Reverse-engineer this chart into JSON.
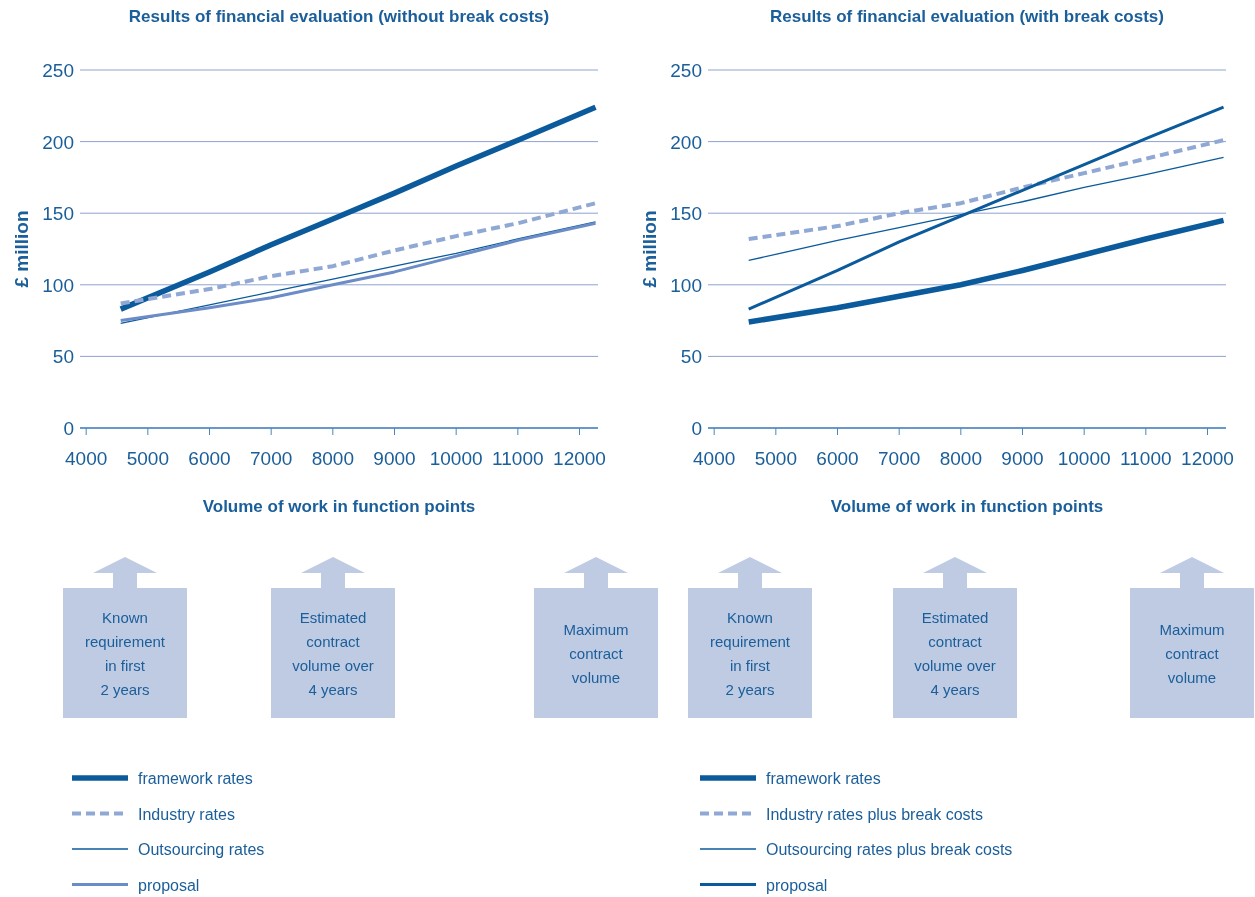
{
  "chart_data": [
    {
      "type": "line",
      "title": "Results of financial evaluation (without break costs)",
      "xlabel": "Volume of work in function points",
      "ylabel": "£ million",
      "x": [
        4560,
        6000,
        7000,
        8000,
        9000,
        10000,
        11000,
        12260
      ],
      "xlim": [
        3900,
        12300
      ],
      "xticks": [
        4000,
        5000,
        6000,
        7000,
        8000,
        9000,
        10000,
        11000,
        12000
      ],
      "ylim": [
        0,
        250
      ],
      "yticks": [
        0,
        50,
        100,
        150,
        200,
        250
      ],
      "grid": "y",
      "legend": "bottom left",
      "marker": "none",
      "series": [
        {
          "name": "framework rates",
          "color": "#0a5a9c",
          "line_style": "solid",
          "values": [
            83,
            109,
            128,
            146,
            164,
            183,
            201,
            224
          ]
        },
        {
          "name": "Industry rates",
          "color": "#8fa8d4",
          "line_style": "dashed",
          "values": [
            87,
            97,
            106,
            113,
            124,
            134,
            143,
            157
          ]
        },
        {
          "name": "Outsourcing rates",
          "color": "#0a5a9c",
          "line_style": "solid",
          "values": [
            73,
            86,
            95,
            104,
            113,
            122,
            132,
            144
          ]
        },
        {
          "name": "proposal",
          "color": "#6b8cc7",
          "line_style": "solid",
          "values": [
            75,
            84,
            91,
            100,
            109,
            120,
            131,
            143
          ]
        }
      ],
      "annotations": [
        "Known\nrequirement\nin first\n2 years",
        "Estimated\ncontract\nvolume over\n4 years",
        "Maximum\ncontract\nvolume"
      ]
    },
    {
      "type": "line",
      "title": "Results of financial evaluation (with break costs)",
      "xlabel": "Volume of work in function points",
      "ylabel": "£ million",
      "x": [
        4560,
        6000,
        7000,
        8000,
        9000,
        10000,
        11000,
        12260
      ],
      "xlim": [
        3900,
        12300
      ],
      "xticks": [
        4000,
        5000,
        6000,
        7000,
        8000,
        9000,
        10000,
        11000,
        12000
      ],
      "ylim": [
        0,
        250
      ],
      "yticks": [
        0,
        50,
        100,
        150,
        200,
        250
      ],
      "grid": "y",
      "legend": "bottom left",
      "marker": "none",
      "series": [
        {
          "name": "framework rates",
          "color": "#0a5a9c",
          "line_style": "solid",
          "values": [
            74,
            84,
            92,
            100,
            110,
            121,
            132,
            145
          ]
        },
        {
          "name": "Industry rates plus break costs",
          "color": "#8fa8d4",
          "line_style": "dashed",
          "values": [
            132,
            141,
            150,
            157,
            168,
            178,
            188,
            201
          ]
        },
        {
          "name": "Outsourcing rates plus break costs",
          "color": "#0a5a9c",
          "line_style": "solid",
          "values": [
            117,
            131,
            140,
            149,
            158,
            168,
            177,
            189
          ]
        },
        {
          "name": "proposal",
          "color": "#0a5a9c",
          "line_style": "solid",
          "values": [
            83,
            110,
            130,
            148,
            166,
            184,
            202,
            224
          ]
        }
      ],
      "annotations": [
        "Known\nrequirement\nin first\n2 years",
        "Estimated\ncontract\nvolume over\n4 years",
        "Maximum\ncontract\nvolume"
      ]
    }
  ]
}
